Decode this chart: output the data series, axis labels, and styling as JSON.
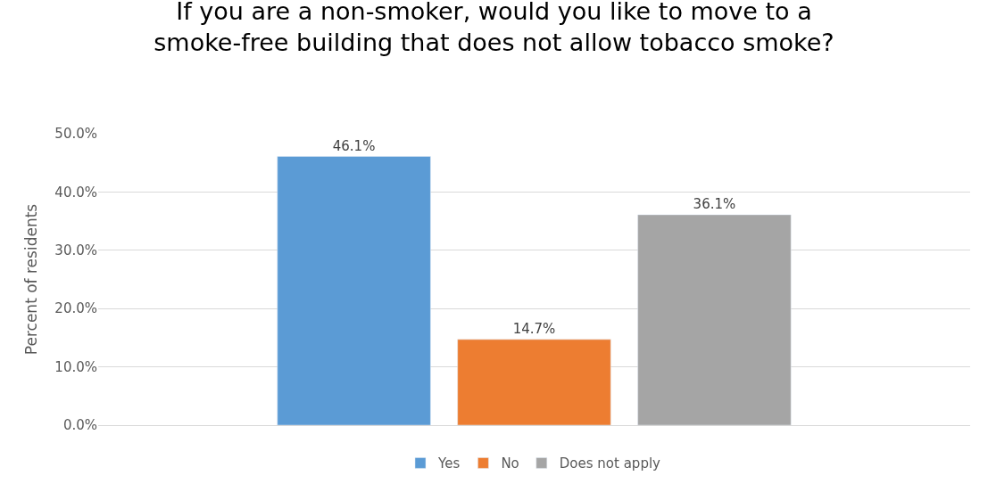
{
  "chart_data": {
    "type": "bar",
    "title": "If you are a non-smoker, would you like to move to a smoke-free building that does not allow tobacco smoke?",
    "ylabel": "Percent of residents",
    "categories": [
      null
    ],
    "series": [
      {
        "name": "Yes",
        "color": "#5b9bd5",
        "values": [
          46.1
        ],
        "value_labels": [
          "46.1%"
        ]
      },
      {
        "name": "No",
        "color": "#ed7d31",
        "values": [
          14.7
        ],
        "value_labels": [
          "14.7%"
        ]
      },
      {
        "name": "Does not apply",
        "color": "#a5a5a5",
        "values": [
          36.1
        ],
        "value_labels": [
          "36.1%"
        ]
      }
    ],
    "ylim": [
      0,
      50
    ],
    "yticks": [
      {
        "value": 0,
        "label": "0.0%"
      },
      {
        "value": 10,
        "label": "10.0%"
      },
      {
        "value": 20,
        "label": "20.0%"
      },
      {
        "value": 30,
        "label": "30.0%"
      },
      {
        "value": 40,
        "label": "40.0%"
      },
      {
        "value": 50,
        "label": "50.0%"
      }
    ],
    "grid": "y",
    "legend": "bottom",
    "tick_labels": "y"
  }
}
